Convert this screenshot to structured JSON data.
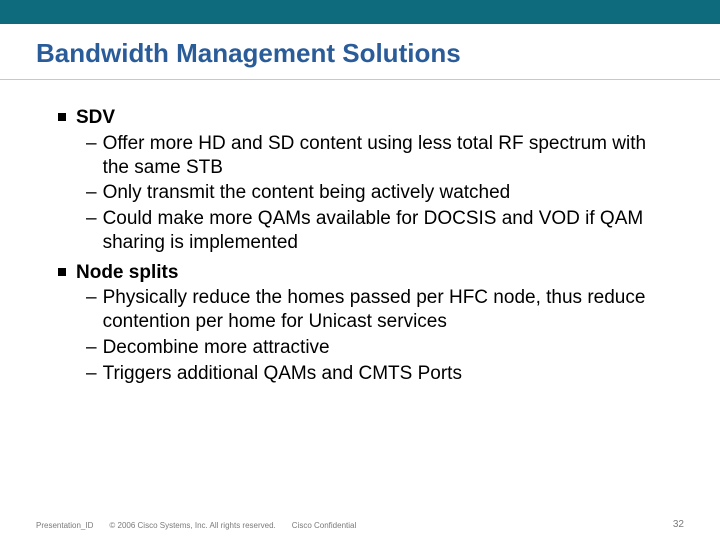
{
  "colors": {
    "top_bar": "#0d6b7d",
    "title": "#2a5c9a",
    "body_text": "#000000",
    "footer_text": "#7a7a7a",
    "divider": "#c8c8c8",
    "background": "#ffffff"
  },
  "title": "Bandwidth Management Solutions",
  "bullets": [
    {
      "label": "SDV",
      "subs": [
        "Offer more HD and SD content using less total RF spectrum with the same STB",
        "Only transmit the content being actively watched",
        "Could make more QAMs available for DOCSIS and VOD if QAM sharing is implemented"
      ]
    },
    {
      "label": "Node splits",
      "subs": [
        "Physically reduce the homes passed per HFC node, thus reduce contention per home for Unicast services",
        "Decombine more attractive",
        "Triggers additional QAMs and CMTS Ports"
      ]
    }
  ],
  "footer": {
    "presentation_id": "Presentation_ID",
    "copyright": "© 2006 Cisco Systems, Inc. All rights reserved.",
    "confidential": "Cisco Confidential",
    "page_number": "32"
  }
}
